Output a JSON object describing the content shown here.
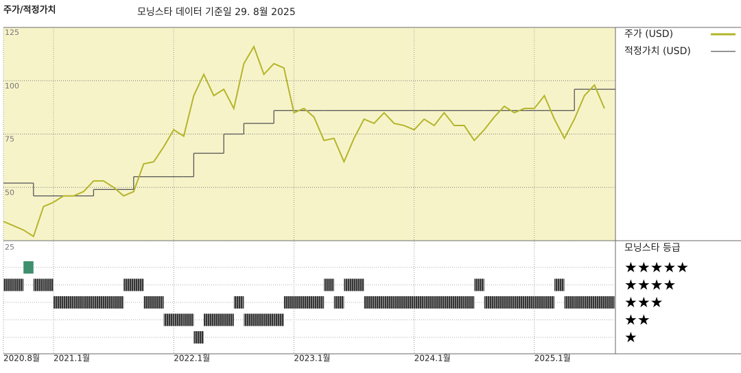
{
  "chart_data": {
    "type": "line",
    "title": "주가/적정가치",
    "subtitle": "모닝스타 데이터 기준일 29. 8월 2025",
    "x": [
      "2020-08",
      "2020-09",
      "2020-10",
      "2020-11",
      "2020-12",
      "2021-01",
      "2021-02",
      "2021-03",
      "2021-04",
      "2021-05",
      "2021-06",
      "2021-07",
      "2021-08",
      "2021-09",
      "2021-10",
      "2021-11",
      "2021-12",
      "2022-01",
      "2022-02",
      "2022-03",
      "2022-04",
      "2022-05",
      "2022-06",
      "2022-07",
      "2022-08",
      "2022-09",
      "2022-10",
      "2022-11",
      "2022-12",
      "2023-01",
      "2023-02",
      "2023-03",
      "2023-04",
      "2023-05",
      "2023-06",
      "2023-07",
      "2023-08",
      "2023-09",
      "2023-10",
      "2023-11",
      "2023-12",
      "2024-01",
      "2024-02",
      "2024-03",
      "2024-04",
      "2024-05",
      "2024-06",
      "2024-07",
      "2024-08",
      "2024-09",
      "2024-10",
      "2024-11",
      "2024-12",
      "2025-01",
      "2025-02",
      "2025-03",
      "2025-04",
      "2025-05",
      "2025-06",
      "2025-07",
      "2025-08"
    ],
    "xticks": [
      {
        "value": "2020-08",
        "label": "2020.8월"
      },
      {
        "value": "2021-01",
        "label": "2021.1월"
      },
      {
        "value": "2022-01",
        "label": "2022.1월"
      },
      {
        "value": "2023-01",
        "label": "2023.1월"
      },
      {
        "value": "2024-01",
        "label": "2024.1월"
      },
      {
        "value": "2025-01",
        "label": "2025.1월"
      }
    ],
    "ylim": [
      25,
      125
    ],
    "yticks": [
      25,
      50,
      75,
      100,
      125
    ],
    "grid": true,
    "series": [
      {
        "name": "주가 (USD)",
        "color": "#b3b52a",
        "style": "line",
        "values": [
          34,
          32,
          30,
          27,
          41,
          43,
          46,
          46,
          48,
          53,
          53,
          50,
          46,
          48,
          61,
          62,
          69,
          77,
          74,
          93,
          103,
          93,
          96,
          87,
          108,
          116,
          103,
          108,
          106,
          85,
          87,
          83,
          72,
          73,
          62,
          73,
          82,
          80,
          85,
          80,
          79,
          77,
          82,
          79,
          85,
          79,
          79,
          72,
          77,
          83,
          88,
          85,
          87,
          87,
          93,
          82,
          73,
          82,
          93,
          98,
          87
        ]
      },
      {
        "name": "적정가치 (USD)",
        "color": "#555555",
        "style": "step",
        "values": [
          52,
          52,
          52,
          46,
          46,
          46,
          46,
          46,
          46,
          49,
          49,
          49,
          49,
          55,
          55,
          55,
          55,
          55,
          55,
          66,
          66,
          66,
          75,
          75,
          80,
          80,
          80,
          86,
          86,
          86,
          86,
          86,
          86,
          86,
          86,
          86,
          86,
          86,
          86,
          86,
          86,
          86,
          86,
          86,
          86,
          86,
          86,
          86,
          86,
          86,
          86,
          86,
          86,
          86,
          86,
          86,
          86,
          96,
          96,
          96,
          96
        ]
      }
    ],
    "rating": {
      "title": "모닝스타 등급",
      "labels": [
        "★★★★★",
        "★★★★",
        "★★★",
        "★★",
        "★"
      ],
      "colors": {
        "5": "#3f8f6f",
        "other": "#333333"
      },
      "values": [
        4,
        4,
        5,
        4,
        4,
        3,
        3,
        3,
        3,
        3,
        3,
        3,
        4,
        4,
        3,
        3,
        2,
        2,
        2,
        1,
        2,
        2,
        2,
        3,
        2,
        2,
        2,
        2,
        3,
        3,
        3,
        3,
        4,
        3,
        4,
        4,
        3,
        3,
        3,
        3,
        3,
        3,
        3,
        3,
        3,
        3,
        3,
        4,
        3,
        3,
        3,
        3,
        3,
        3,
        3,
        4,
        3,
        3,
        3,
        3,
        3
      ]
    }
  }
}
